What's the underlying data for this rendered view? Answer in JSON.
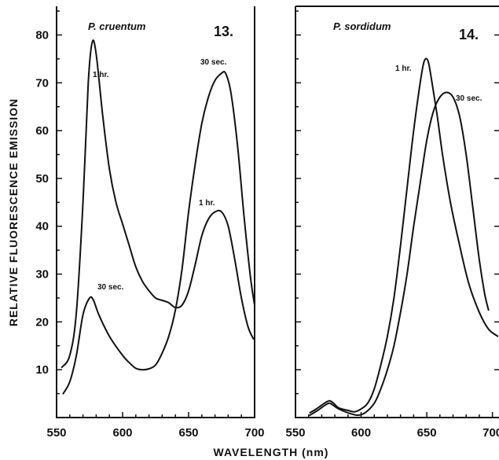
{
  "figure": {
    "xlabel": "WAVELENGTH (nm)",
    "ylabel": "RELATIVE FLUORESCENCE EMISSION"
  },
  "chart_data": [
    {
      "type": "line",
      "title": "P. cruentum",
      "panel_number": "13.",
      "xlim": [
        550,
        700
      ],
      "ylim": [
        0,
        86
      ],
      "x_ticks": [
        "550",
        "600",
        "650",
        "700"
      ],
      "y_ticks": [
        "10",
        "20",
        "30",
        "40",
        "50",
        "60",
        "70",
        "80"
      ],
      "series": [
        {
          "name": "1 hr.",
          "points": [
            [
              554,
              10.5
            ],
            [
              560,
              13
            ],
            [
              565,
              22
            ],
            [
              570,
              45
            ],
            [
              574,
              70
            ],
            [
              577,
              78.5
            ],
            [
              580,
              76
            ],
            [
              585,
              63
            ],
            [
              590,
              52
            ],
            [
              595,
              45
            ],
            [
              600,
              40.5
            ],
            [
              605,
              36
            ],
            [
              610,
              31.5
            ],
            [
              615,
              28.5
            ],
            [
              620,
              26.5
            ],
            [
              625,
              25
            ],
            [
              630,
              24.5
            ],
            [
              635,
              24
            ],
            [
              640,
              23
            ],
            [
              645,
              23.5
            ],
            [
              650,
              26.5
            ],
            [
              655,
              32
            ],
            [
              660,
              38
            ],
            [
              665,
              41.5
            ],
            [
              670,
              43
            ],
            [
              675,
              43
            ],
            [
              680,
              40
            ],
            [
              685,
              33
            ],
            [
              690,
              25
            ],
            [
              695,
              19
            ],
            [
              699,
              16.5
            ]
          ]
        },
        {
          "name": "30 sec.",
          "points": [
            [
              555,
              5
            ],
            [
              560,
              7.5
            ],
            [
              565,
              13
            ],
            [
              570,
              21.5
            ],
            [
              575,
              25
            ],
            [
              578,
              24.5
            ],
            [
              582,
              21.5
            ],
            [
              590,
              17
            ],
            [
              600,
              13
            ],
            [
              605,
              11.5
            ],
            [
              610,
              10.3
            ],
            [
              615,
              10
            ],
            [
              620,
              10.2
            ],
            [
              625,
              11
            ],
            [
              630,
              13.5
            ],
            [
              635,
              17
            ],
            [
              640,
              22.5
            ],
            [
              645,
              31
            ],
            [
              650,
              43
            ],
            [
              655,
              53
            ],
            [
              660,
              61.5
            ],
            [
              665,
              67
            ],
            [
              670,
              70.5
            ],
            [
              675,
              72
            ],
            [
              678,
              72
            ],
            [
              682,
              68
            ],
            [
              687,
              57
            ],
            [
              692,
              42
            ],
            [
              697,
              29
            ],
            [
              700,
              23.5
            ]
          ]
        }
      ],
      "annotations": [
        "1 hr.",
        "30 sec.",
        "1 hr.",
        "30 sec."
      ]
    },
    {
      "type": "line",
      "title": "P. sordidum",
      "panel_number": "14.",
      "xlim": [
        550,
        705
      ],
      "ylim": [
        0,
        86
      ],
      "x_ticks": [
        "550",
        "600",
        "650",
        "700"
      ],
      "y_ticks": [],
      "series": [
        {
          "name": "1 hr.",
          "points": [
            [
              561,
              1
            ],
            [
              567,
              2
            ],
            [
              572,
              3
            ],
            [
              576,
              3.5
            ],
            [
              579,
              3
            ],
            [
              583,
              2
            ],
            [
              590,
              1.5
            ],
            [
              595,
              1.2
            ],
            [
              600,
              1.8
            ],
            [
              605,
              3
            ],
            [
              610,
              6
            ],
            [
              615,
              11
            ],
            [
              620,
              17
            ],
            [
              625,
              25
            ],
            [
              630,
              36
            ],
            [
              635,
              48
            ],
            [
              640,
              60
            ],
            [
              645,
              70
            ],
            [
              648,
              74.5
            ],
            [
              651,
              74.5
            ],
            [
              654,
              70
            ],
            [
              658,
              63
            ],
            [
              662,
              55
            ],
            [
              668,
              45
            ],
            [
              675,
              36
            ],
            [
              682,
              28
            ],
            [
              690,
              22
            ],
            [
              697,
              18.5
            ],
            [
              704,
              17
            ]
          ]
        },
        {
          "name": "30 sec.",
          "points": [
            [
              561,
              0.5
            ],
            [
              567,
              1.5
            ],
            [
              572,
              2.5
            ],
            [
              576,
              3
            ],
            [
              579,
              2.5
            ],
            [
              583,
              1.8
            ],
            [
              590,
              1
            ],
            [
              597,
              0.5
            ],
            [
              603,
              1
            ],
            [
              610,
              3
            ],
            [
              615,
              6
            ],
            [
              620,
              10
            ],
            [
              625,
              15
            ],
            [
              630,
              22
            ],
            [
              635,
              30
            ],
            [
              640,
              40
            ],
            [
              645,
              49
            ],
            [
              650,
              58
            ],
            [
              655,
              64
            ],
            [
              660,
              67
            ],
            [
              665,
              68
            ],
            [
              670,
              67
            ],
            [
              675,
              63
            ],
            [
              680,
              55
            ],
            [
              685,
              44
            ],
            [
              690,
              33
            ],
            [
              694,
              26
            ],
            [
              697,
              22.5
            ]
          ]
        }
      ],
      "annotations": [
        "1 hr.",
        "30 sec."
      ]
    }
  ]
}
